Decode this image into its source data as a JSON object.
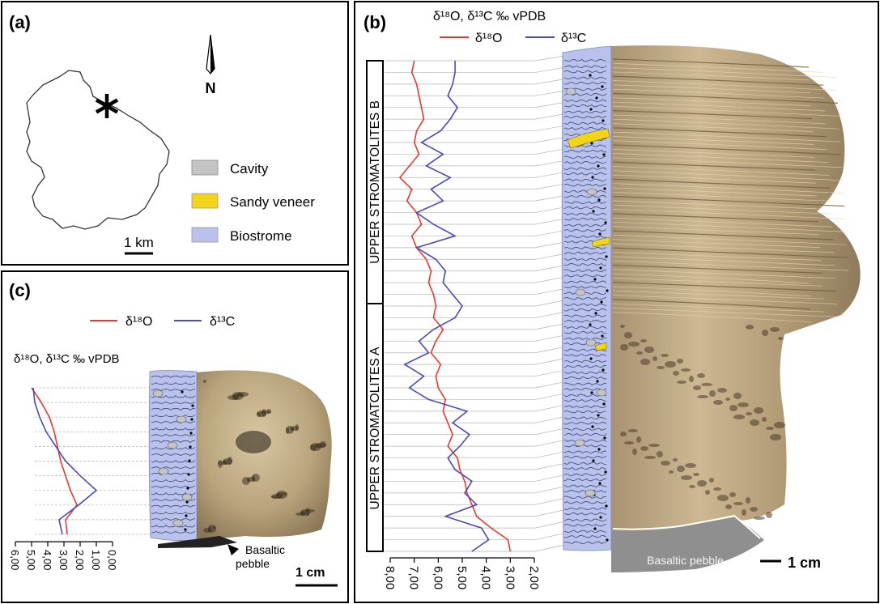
{
  "panel_a": {
    "label": "(a)",
    "north": "N",
    "scale": "1 km",
    "legend": [
      {
        "label": "Cavity",
        "color": "#c4c4c4"
      },
      {
        "label": "Sandy veneer",
        "color": "#f2d41a"
      },
      {
        "label": "Biostrome",
        "color": "#b9c2ea"
      }
    ]
  },
  "panel_b": {
    "label": "(b)",
    "axis_title": "δ¹⁸O, δ¹³C ‰ vPDB",
    "legend_o": "δ¹⁸O",
    "legend_c": "δ¹³C",
    "unit_b": "UPPER STROMATOLITES B",
    "unit_a": "UPPER STROMATOLITES A",
    "pebble": "Basaltic pebble",
    "scale": "1 cm"
  },
  "panel_c": {
    "label": "(c)",
    "axis_title": "δ¹⁸O, δ¹³C ‰ vPDB",
    "legend_o": "δ¹⁸O",
    "legend_c": "δ¹³C",
    "pebble_line1": "Basaltic",
    "pebble_line2": "pebble",
    "scale": "1 cm"
  },
  "colors": {
    "d18O": "#e8382f",
    "d13C": "#4a4ab4",
    "biostrome": "#b9c2ea",
    "sandy": "#f2d41a",
    "cavity": "#c4c4c4"
  },
  "chart_data": [
    {
      "type": "line",
      "panel": "b",
      "x_axis": "δ¹⁸O, δ¹³C ‰ vPDB",
      "xlim": [
        8.0,
        2.0
      ],
      "x_reversed": true,
      "ticks": [
        "8,00",
        "7,00",
        "6,00",
        "5,00",
        "4,00",
        "3,00",
        "2,00"
      ],
      "series": [
        {
          "name": "δ¹⁸O",
          "values": [
            7.0,
            7.1,
            6.9,
            6.8,
            6.7,
            6.6,
            6.9,
            7.0,
            6.8,
            7.2,
            7.6,
            7.1,
            7.3,
            6.9,
            6.7,
            7.1,
            6.9,
            6.5,
            6.3,
            6.4,
            6.2,
            6.1,
            6.2,
            5.8,
            6.1,
            6.3,
            5.9,
            6.1,
            6.0,
            5.7,
            5.8,
            5.6,
            5.4,
            5.6,
            5.2,
            5.1,
            4.9,
            4.8,
            4.6,
            4.4,
            3.8,
            3.1,
            3.0
          ]
        },
        {
          "name": "δ¹³C",
          "values": [
            5.3,
            5.3,
            5.4,
            5.6,
            5.2,
            5.5,
            5.9,
            6.7,
            5.8,
            6.5,
            5.5,
            6.3,
            5.8,
            6.9,
            6.2,
            5.3,
            6.9,
            6.1,
            5.7,
            5.8,
            5.4,
            5.0,
            5.3,
            6.2,
            6.8,
            6.4,
            7.4,
            6.6,
            7.2,
            6.4,
            4.8,
            5.4,
            4.7,
            5.1,
            5.6,
            5.3,
            4.6,
            4.9,
            4.4,
            5.7,
            4.2,
            3.9,
            4.6
          ]
        }
      ]
    },
    {
      "type": "line",
      "panel": "c",
      "x_axis": "δ¹⁸O, δ¹³C ‰ vPDB",
      "xlim": [
        6.0,
        0.0
      ],
      "x_reversed": true,
      "ticks": [
        "6,00",
        "5,00",
        "4,00",
        "3,00",
        "2,00",
        "1,00",
        "0,00"
      ],
      "series": [
        {
          "name": "δ¹⁸O",
          "values": [
            5.0,
            4.4,
            3.9,
            3.6,
            3.4,
            3.2,
            2.9,
            2.6,
            2.2,
            2.9,
            2.8
          ]
        },
        {
          "name": "δ¹³C",
          "values": [
            4.9,
            4.8,
            4.5,
            4.1,
            3.5,
            2.9,
            2.0,
            1.0,
            2.1,
            3.3,
            3.1
          ]
        }
      ]
    }
  ]
}
